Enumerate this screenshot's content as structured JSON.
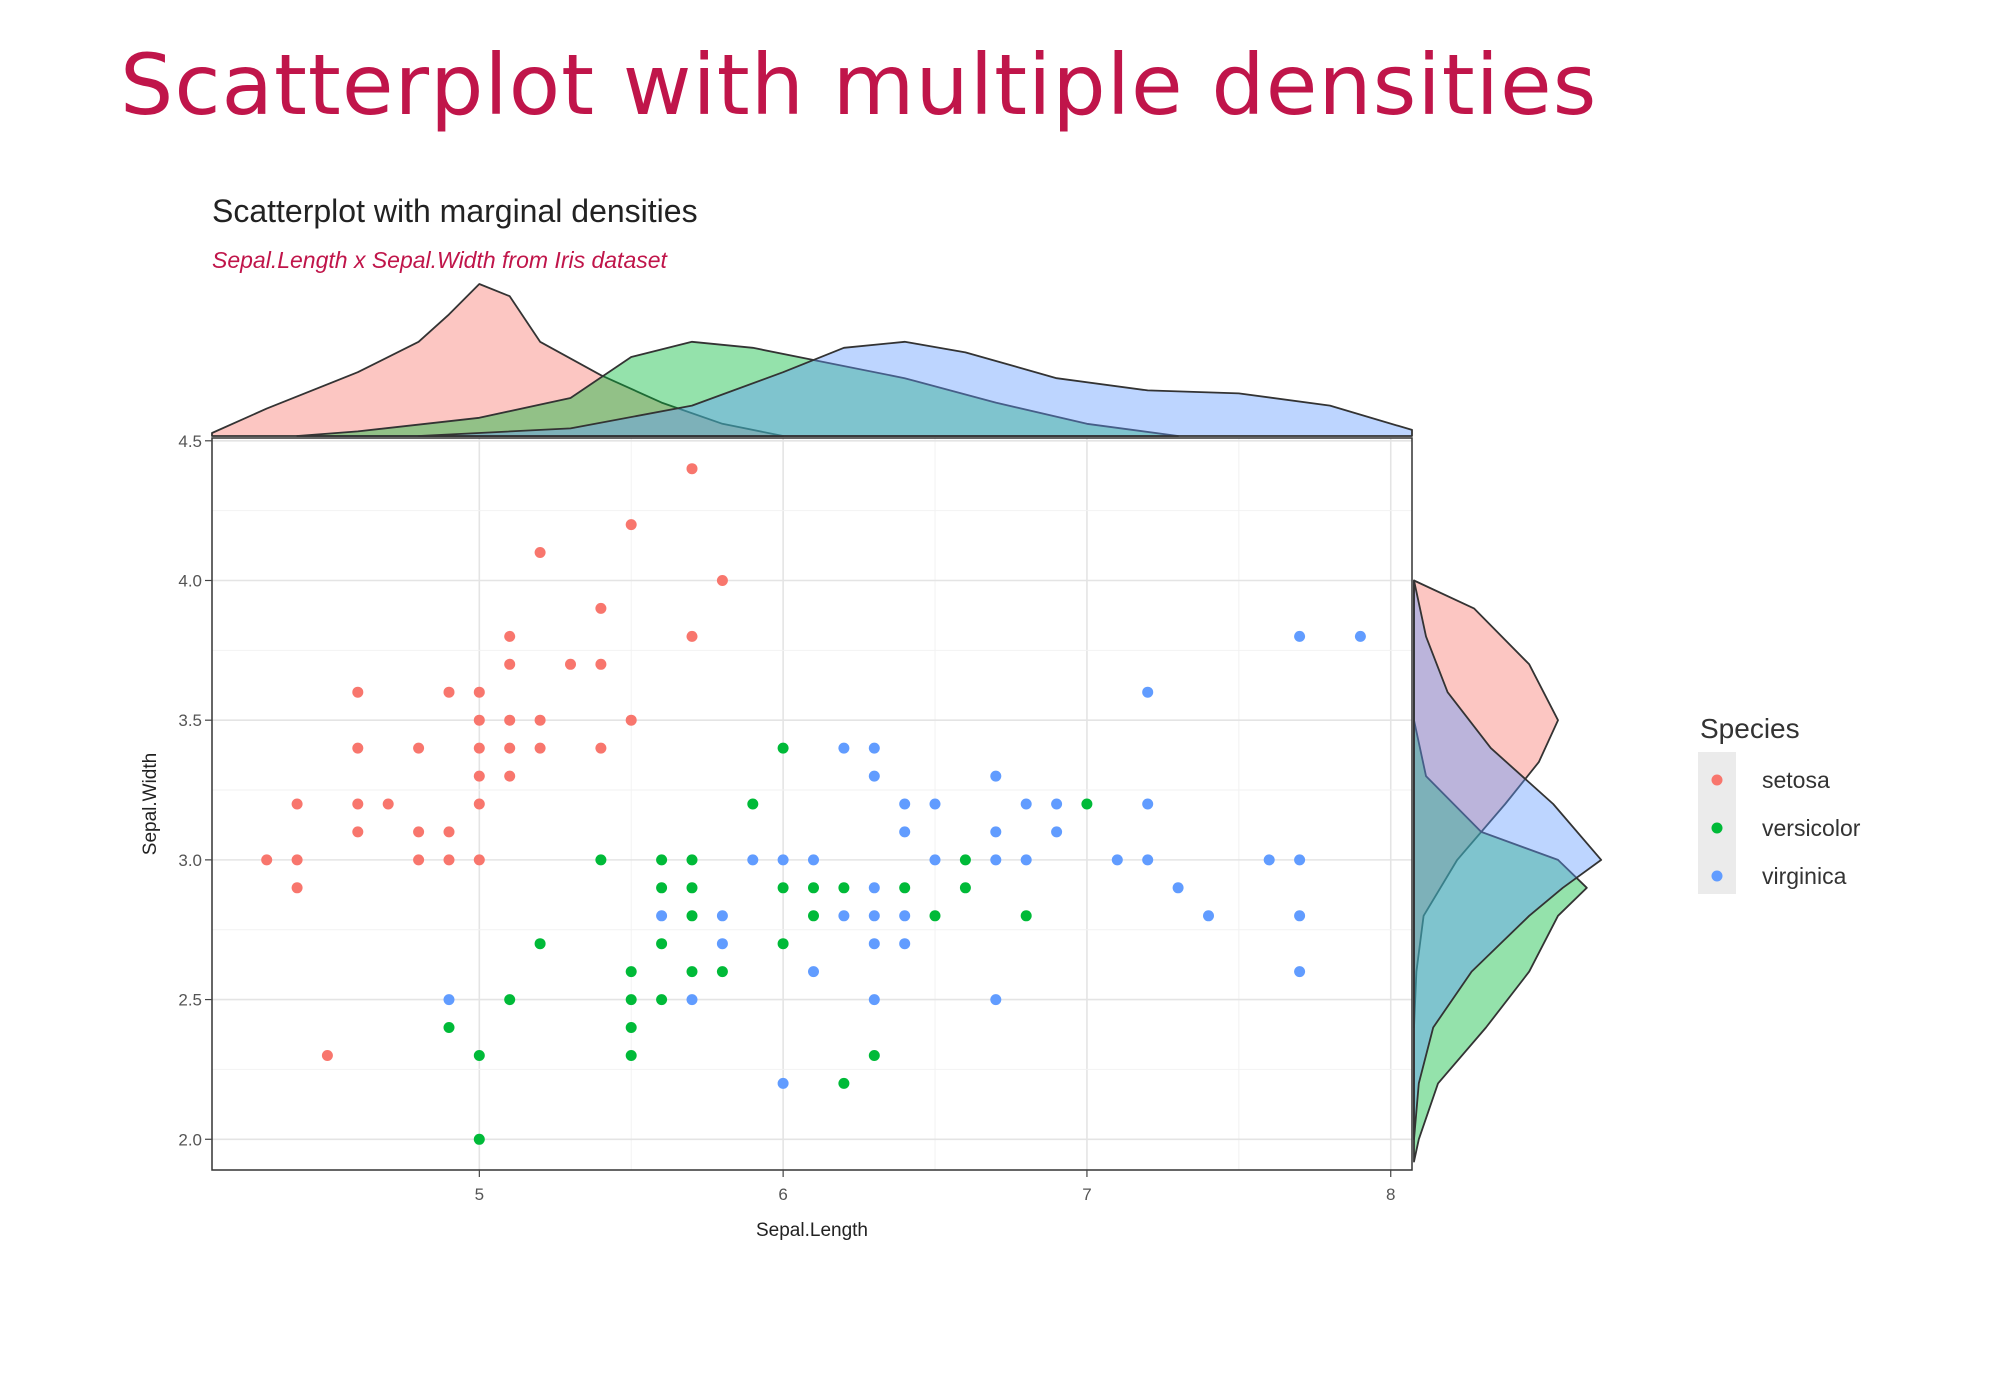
{
  "slide": {
    "title": "Scatterplot with multiple densities"
  },
  "chart_data": {
    "type": "scatter",
    "title": "Scatterplot with marginal densities",
    "subtitle": "Sepal.Length x Sepal.Width from Iris dataset",
    "xlabel": "Sepal.Length",
    "ylabel": "Sepal.Width",
    "xlim": [
      4.12,
      8.07
    ],
    "ylim": [
      1.89,
      4.51
    ],
    "xticks": [
      5,
      6,
      7,
      8
    ],
    "yticks": [
      2.0,
      2.5,
      3.0,
      3.5,
      4.0,
      4.5
    ],
    "ytick_labels": [
      "2.0",
      "2.5",
      "3.0",
      "3.5",
      "4.0",
      "4.5"
    ],
    "grid": true,
    "marginal_densities": true,
    "legend": {
      "title": "Species",
      "position": "right"
    },
    "series": [
      {
        "name": "setosa",
        "color": "#F8766D",
        "points": [
          [
            5.7,
            4.4
          ],
          [
            5.5,
            4.2
          ],
          [
            5.2,
            4.1
          ],
          [
            5.8,
            4.0
          ],
          [
            5.4,
            3.9
          ],
          [
            5.1,
            3.8
          ],
          [
            5.7,
            3.8
          ],
          [
            5.1,
            3.7
          ],
          [
            5.3,
            3.7
          ],
          [
            5.4,
            3.7
          ],
          [
            4.6,
            3.6
          ],
          [
            4.9,
            3.6
          ],
          [
            5.0,
            3.6
          ],
          [
            5.0,
            3.5
          ],
          [
            5.1,
            3.5
          ],
          [
            5.2,
            3.5
          ],
          [
            5.5,
            3.5
          ],
          [
            4.6,
            3.4
          ],
          [
            4.8,
            3.4
          ],
          [
            5.0,
            3.4
          ],
          [
            5.1,
            3.4
          ],
          [
            5.2,
            3.4
          ],
          [
            5.4,
            3.4
          ],
          [
            5.0,
            3.3
          ],
          [
            5.1,
            3.3
          ],
          [
            4.4,
            3.2
          ],
          [
            4.6,
            3.2
          ],
          [
            4.7,
            3.2
          ],
          [
            5.0,
            3.2
          ],
          [
            4.6,
            3.1
          ],
          [
            4.8,
            3.1
          ],
          [
            4.9,
            3.1
          ],
          [
            4.3,
            3.0
          ],
          [
            4.4,
            3.0
          ],
          [
            4.8,
            3.0
          ],
          [
            4.9,
            3.0
          ],
          [
            5.0,
            3.0
          ],
          [
            4.4,
            2.9
          ],
          [
            4.5,
            2.3
          ]
        ]
      },
      {
        "name": "versicolor",
        "color": "#00BA38",
        "points": [
          [
            6.0,
            3.4
          ],
          [
            5.9,
            3.2
          ],
          [
            7.0,
            3.2
          ],
          [
            5.4,
            3.0
          ],
          [
            5.6,
            3.0
          ],
          [
            5.7,
            3.0
          ],
          [
            6.6,
            3.0
          ],
          [
            5.6,
            2.9
          ],
          [
            5.7,
            2.9
          ],
          [
            6.0,
            2.9
          ],
          [
            6.1,
            2.9
          ],
          [
            6.2,
            2.9
          ],
          [
            6.4,
            2.9
          ],
          [
            6.6,
            2.9
          ],
          [
            5.7,
            2.8
          ],
          [
            6.1,
            2.8
          ],
          [
            6.5,
            2.8
          ],
          [
            6.8,
            2.8
          ],
          [
            5.2,
            2.7
          ],
          [
            5.6,
            2.7
          ],
          [
            6.0,
            2.7
          ],
          [
            5.5,
            2.6
          ],
          [
            5.7,
            2.6
          ],
          [
            5.8,
            2.6
          ],
          [
            5.1,
            2.5
          ],
          [
            5.5,
            2.5
          ],
          [
            5.6,
            2.5
          ],
          [
            4.9,
            2.4
          ],
          [
            5.5,
            2.4
          ],
          [
            5.0,
            2.3
          ],
          [
            5.5,
            2.3
          ],
          [
            6.3,
            2.3
          ],
          [
            6.2,
            2.2
          ],
          [
            5.0,
            2.0
          ]
        ]
      },
      {
        "name": "virginica",
        "color": "#619CFF",
        "points": [
          [
            7.7,
            3.8
          ],
          [
            7.9,
            3.8
          ],
          [
            7.2,
            3.6
          ],
          [
            6.2,
            3.4
          ],
          [
            6.3,
            3.4
          ],
          [
            6.3,
            3.3
          ],
          [
            6.7,
            3.3
          ],
          [
            6.4,
            3.2
          ],
          [
            6.5,
            3.2
          ],
          [
            6.8,
            3.2
          ],
          [
            6.9,
            3.2
          ],
          [
            7.2,
            3.2
          ],
          [
            6.4,
            3.1
          ],
          [
            6.7,
            3.1
          ],
          [
            6.9,
            3.1
          ],
          [
            5.9,
            3.0
          ],
          [
            6.0,
            3.0
          ],
          [
            6.1,
            3.0
          ],
          [
            6.5,
            3.0
          ],
          [
            6.7,
            3.0
          ],
          [
            6.8,
            3.0
          ],
          [
            7.1,
            3.0
          ],
          [
            7.2,
            3.0
          ],
          [
            7.6,
            3.0
          ],
          [
            7.7,
            3.0
          ],
          [
            6.3,
            2.9
          ],
          [
            7.3,
            2.9
          ],
          [
            5.6,
            2.8
          ],
          [
            5.8,
            2.8
          ],
          [
            6.2,
            2.8
          ],
          [
            6.3,
            2.8
          ],
          [
            6.4,
            2.8
          ],
          [
            7.4,
            2.8
          ],
          [
            7.7,
            2.8
          ],
          [
            5.8,
            2.7
          ],
          [
            6.3,
            2.7
          ],
          [
            6.4,
            2.7
          ],
          [
            6.1,
            2.6
          ],
          [
            7.7,
            2.6
          ],
          [
            4.9,
            2.5
          ],
          [
            5.7,
            2.5
          ],
          [
            6.3,
            2.5
          ],
          [
            6.7,
            2.5
          ],
          [
            6.0,
            2.2
          ]
        ]
      }
    ],
    "x_density": [
      {
        "name": "setosa",
        "color": "#F8766D",
        "points": [
          [
            4.12,
            0.02
          ],
          [
            4.3,
            0.18
          ],
          [
            4.6,
            0.42
          ],
          [
            4.8,
            0.62
          ],
          [
            4.9,
            0.8
          ],
          [
            5.0,
            1.0
          ],
          [
            5.1,
            0.92
          ],
          [
            5.2,
            0.62
          ],
          [
            5.4,
            0.4
          ],
          [
            5.6,
            0.22
          ],
          [
            5.8,
            0.08
          ],
          [
            6.0,
            0.0
          ]
        ]
      },
      {
        "name": "versicolor",
        "color": "#00BA38",
        "points": [
          [
            4.4,
            0.0
          ],
          [
            4.6,
            0.03
          ],
          [
            5.0,
            0.12
          ],
          [
            5.3,
            0.25
          ],
          [
            5.5,
            0.52
          ],
          [
            5.7,
            0.62
          ],
          [
            5.9,
            0.58
          ],
          [
            6.1,
            0.5
          ],
          [
            6.4,
            0.38
          ],
          [
            6.7,
            0.22
          ],
          [
            7.0,
            0.08
          ],
          [
            7.3,
            0.0
          ]
        ]
      },
      {
        "name": "virginica",
        "color": "#619CFF",
        "points": [
          [
            4.8,
            0.0
          ],
          [
            5.3,
            0.05
          ],
          [
            5.7,
            0.2
          ],
          [
            6.0,
            0.42
          ],
          [
            6.2,
            0.58
          ],
          [
            6.4,
            0.62
          ],
          [
            6.6,
            0.55
          ],
          [
            6.9,
            0.38
          ],
          [
            7.2,
            0.3
          ],
          [
            7.5,
            0.28
          ],
          [
            7.8,
            0.2
          ],
          [
            8.07,
            0.04
          ]
        ]
      }
    ],
    "y_density": [
      {
        "name": "setosa",
        "color": "#F8766D",
        "points": [
          [
            4.0,
            0.0
          ],
          [
            3.9,
            0.25
          ],
          [
            3.7,
            0.48
          ],
          [
            3.5,
            0.6
          ],
          [
            3.35,
            0.52
          ],
          [
            3.2,
            0.38
          ],
          [
            3.0,
            0.18
          ],
          [
            2.8,
            0.04
          ],
          [
            2.6,
            0.01
          ],
          [
            2.4,
            0.0
          ]
        ]
      },
      {
        "name": "versicolor",
        "color": "#00BA38",
        "points": [
          [
            3.5,
            0.0
          ],
          [
            3.3,
            0.05
          ],
          [
            3.1,
            0.28
          ],
          [
            3.0,
            0.6
          ],
          [
            2.9,
            0.72
          ],
          [
            2.8,
            0.6
          ],
          [
            2.6,
            0.48
          ],
          [
            2.4,
            0.3
          ],
          [
            2.2,
            0.1
          ],
          [
            2.0,
            0.02
          ],
          [
            1.92,
            0.0
          ]
        ]
      },
      {
        "name": "virginica",
        "color": "#619CFF",
        "points": [
          [
            4.0,
            0.0
          ],
          [
            3.8,
            0.05
          ],
          [
            3.6,
            0.14
          ],
          [
            3.4,
            0.32
          ],
          [
            3.2,
            0.58
          ],
          [
            3.0,
            0.78
          ],
          [
            2.9,
            0.62
          ],
          [
            2.8,
            0.48
          ],
          [
            2.6,
            0.24
          ],
          [
            2.4,
            0.08
          ],
          [
            2.2,
            0.02
          ],
          [
            2.0,
            0.0
          ]
        ]
      }
    ]
  }
}
